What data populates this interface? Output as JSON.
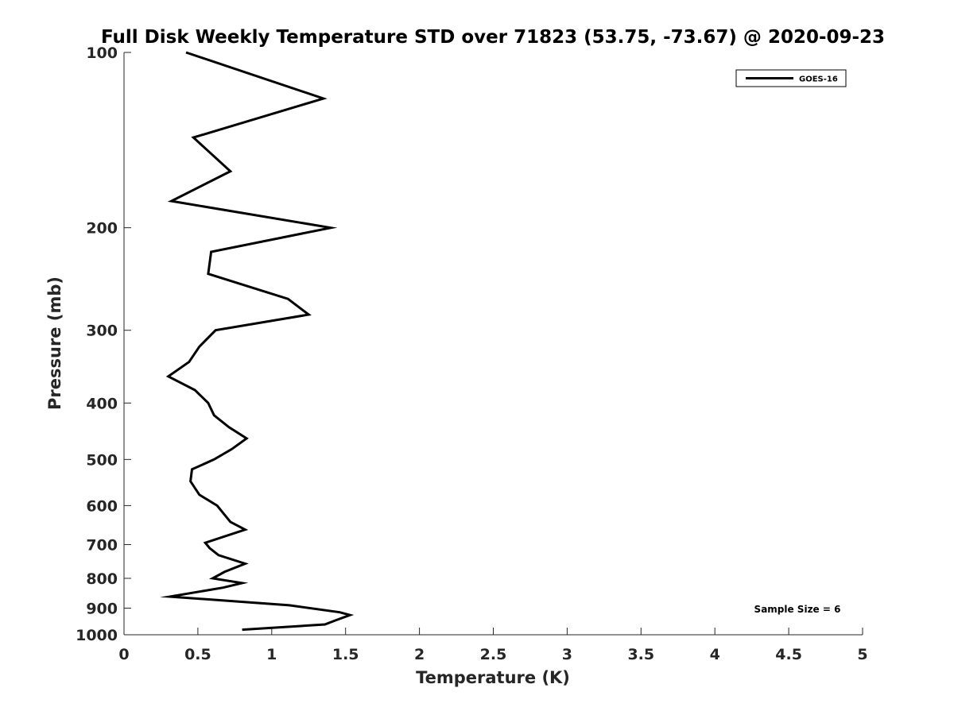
{
  "chart_data": {
    "type": "line",
    "title": "Full Disk Weekly Temperature STD over 71823 (53.75, -73.67) @ 2020-09-23",
    "xlabel": "Temperature (K)",
    "ylabel": "Pressure (mb)",
    "xlim": [
      0,
      5
    ],
    "ylim": [
      100,
      1000
    ],
    "y_scale": "log",
    "y_reversed": true,
    "grid": false,
    "legend_position": "top-right",
    "x_ticks": [
      "0",
      "0.5",
      "1",
      "1.5",
      "2",
      "2.5",
      "3",
      "3.5",
      "4",
      "4.5",
      "5"
    ],
    "y_ticks": [
      "100",
      "200",
      "300",
      "400",
      "500",
      "600",
      "700",
      "800",
      "900",
      "1000"
    ],
    "annotation": "Sample Size = 6",
    "series": [
      {
        "name": "GOES-16",
        "color": "#000000",
        "points": [
          [
            0.42,
            100
          ],
          [
            1.35,
            120
          ],
          [
            0.47,
            140
          ],
          [
            0.72,
            160
          ],
          [
            0.32,
            180
          ],
          [
            1.4,
            200
          ],
          [
            0.59,
            220
          ],
          [
            0.57,
            240
          ],
          [
            1.11,
            265
          ],
          [
            1.25,
            282
          ],
          [
            0.62,
            300
          ],
          [
            0.51,
            320
          ],
          [
            0.44,
            340
          ],
          [
            0.3,
            360
          ],
          [
            0.48,
            380
          ],
          [
            0.57,
            400
          ],
          [
            0.61,
            420
          ],
          [
            0.71,
            440
          ],
          [
            0.83,
            460
          ],
          [
            0.73,
            480
          ],
          [
            0.61,
            500
          ],
          [
            0.46,
            520
          ],
          [
            0.45,
            545
          ],
          [
            0.51,
            575
          ],
          [
            0.63,
            600
          ],
          [
            0.72,
            640
          ],
          [
            0.82,
            660
          ],
          [
            0.55,
            695
          ],
          [
            0.58,
            710
          ],
          [
            0.64,
            730
          ],
          [
            0.82,
            755
          ],
          [
            0.68,
            780
          ],
          [
            0.6,
            800
          ],
          [
            0.8,
            815
          ],
          [
            0.67,
            830
          ],
          [
            0.31,
            860
          ],
          [
            1.12,
            890
          ],
          [
            1.46,
            915
          ],
          [
            1.53,
            925
          ],
          [
            1.43,
            945
          ],
          [
            1.36,
            960
          ],
          [
            0.8,
            980
          ]
        ]
      }
    ]
  }
}
